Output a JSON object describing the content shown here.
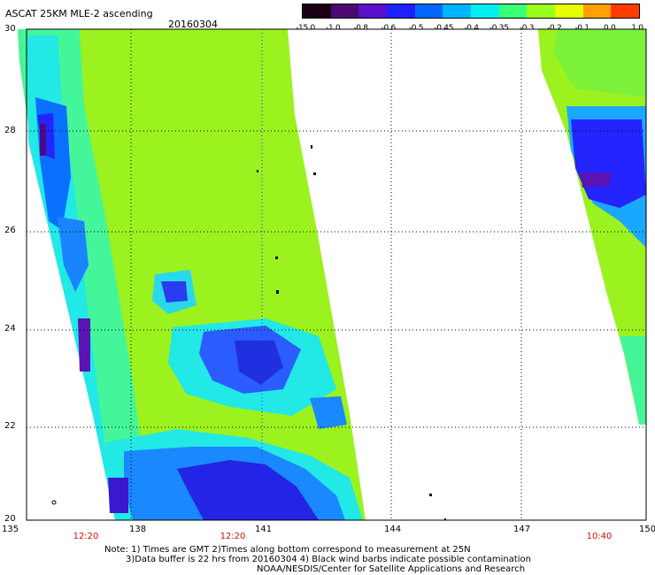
{
  "header": {
    "title": "ASCAT 25KM MLE-2 ascending",
    "date": "20160304"
  },
  "colorbar": {
    "labels": [
      "-15.0",
      "-1.0",
      "-0.8",
      "-0.6",
      "-0.5",
      "-0.45",
      "-0.4",
      "-0.35",
      "-0.3",
      "-0.2",
      "-0.1",
      "0.0",
      "1.0"
    ],
    "colors": [
      "#1a0014",
      "#4b0a6e",
      "#5a0fc8",
      "#2020ff",
      "#0068ff",
      "#00b4ff",
      "#00f0f0",
      "#3cff78",
      "#9bff1e",
      "#e6ff00",
      "#ffa000",
      "#ff3c00"
    ]
  },
  "map": {
    "lat_labels": [
      "30",
      "28",
      "26",
      "24",
      "22",
      "20"
    ],
    "lon_labels": [
      "135",
      "138",
      "141",
      "144",
      "147",
      "150"
    ],
    "pass_times": [
      "12:20",
      "12:20",
      "10:40"
    ],
    "lat_range": [
      20,
      30
    ],
    "lon_range": [
      135,
      150
    ]
  },
  "notes": {
    "line1": "Note: 1) Times are GMT 2)Times along bottom correspond to measurement at 25N",
    "line2": "3)Data buffer is 22 hrs from 20160304 4) Black wind barbs indicate possible contamination",
    "line3": "NOAA/NESDIS/Center for Satellite Applications and Research"
  }
}
